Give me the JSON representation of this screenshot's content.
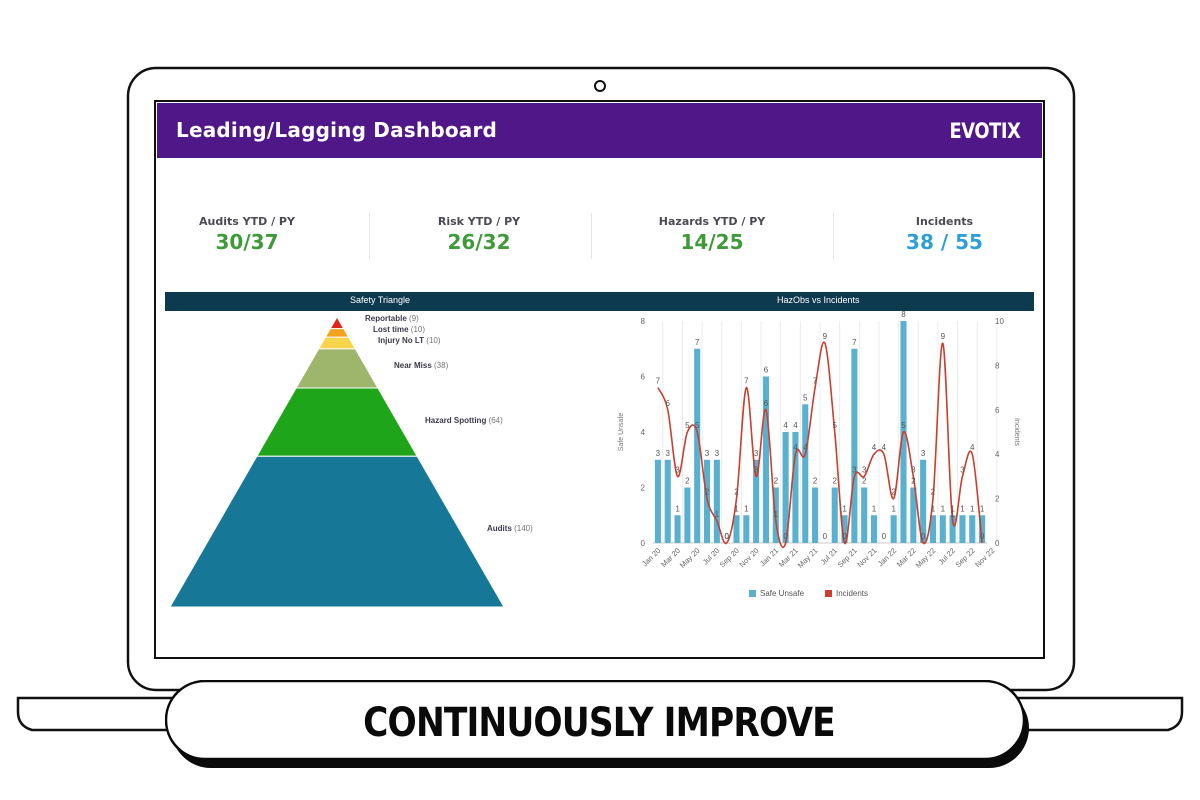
{
  "dashboard": {
    "title": "Leading/Lagging Dashboard",
    "logo_text": "EVOTIX",
    "brand_color": "#501789"
  },
  "kpis": [
    {
      "label": "Audits YTD / PY",
      "value": "30/37",
      "color": "#3f9b3a"
    },
    {
      "label": "Risk YTD / PY",
      "value": "26/32",
      "color": "#3f9b3a"
    },
    {
      "label": "Hazards YTD / PY",
      "value": "14/25",
      "color": "#3f9b3a"
    },
    {
      "label": "Incidents",
      "value": "38 / 55",
      "color": "#2f9fd8"
    }
  ],
  "sections": {
    "triangle_title": "Safety Triangle",
    "hazobs_title": "HazObs vs Incidents"
  },
  "banner": {
    "text": "CONTINUOUSLY IMPROVE"
  },
  "chart_data": [
    {
      "type": "pyramid",
      "title": "Safety Triangle",
      "levels": [
        {
          "name": "Reportable",
          "value": 9,
          "color": "#e0261b"
        },
        {
          "name": "Lost time",
          "value": 10,
          "color": "#f5a21e"
        },
        {
          "name": "Injury No LT",
          "value": 10,
          "color": "#f7d54a"
        },
        {
          "name": "Near Miss",
          "value": 38,
          "color": "#9eb66b"
        },
        {
          "name": "Hazard Spotting",
          "value": 64,
          "color": "#1ea51a"
        },
        {
          "name": "Audits",
          "value": 140,
          "color": "#167797"
        }
      ]
    },
    {
      "type": "bar+line",
      "title": "HazObs vs Incidents",
      "ylabel_left": "Safe Unsafe",
      "ylabel_right": "Incidents",
      "ylim_left": [
        0,
        8
      ],
      "ylim_right": [
        0,
        10
      ],
      "yticks_left": [
        "0",
        "2",
        "4",
        "6",
        "8"
      ],
      "yticks_right": [
        "0",
        "2",
        "4",
        "6",
        "8",
        "10"
      ],
      "x_tick_labels": [
        "Jan 20",
        "Mar 20",
        "May 20",
        "Jul 20",
        "Sep 20",
        "Nov 20",
        "Jan 21",
        "Mar 21",
        "May 21",
        "Jul 21",
        "Sep 21",
        "Nov 21",
        "Jan 22",
        "Mar 22",
        "May 22",
        "Jul 22",
        "Sep 22",
        "Nov 22"
      ],
      "legend": [
        "Safe Unsafe",
        "Incidents"
      ],
      "legend_position": "bottom",
      "colors": {
        "bars": "#5ab0cf",
        "line": "#c8402e"
      },
      "series": [
        {
          "name": "Safe Unsafe",
          "type": "bar",
          "values": [
            3,
            3,
            1,
            2,
            7,
            3,
            3,
            0,
            1,
            1,
            3,
            6,
            2,
            4,
            4,
            5,
            2,
            0,
            2,
            1,
            7,
            2,
            1,
            0,
            1,
            8,
            2,
            3,
            1,
            1,
            1,
            1,
            1,
            1
          ]
        },
        {
          "name": "Incidents",
          "type": "line",
          "values": [
            7,
            6,
            3,
            5,
            5,
            2,
            1,
            0,
            2,
            7,
            3,
            6,
            1,
            0,
            4,
            4,
            7,
            9,
            5,
            0,
            3,
            3,
            4,
            4,
            2,
            5,
            3,
            0,
            2,
            9,
            1,
            3,
            4,
            0
          ]
        }
      ]
    }
  ]
}
